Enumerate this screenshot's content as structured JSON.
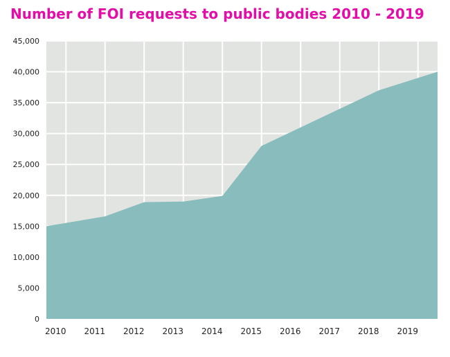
{
  "chart_data": {
    "type": "area",
    "title": "Number of FOI requests to public bodies 2010 - 2019",
    "xlabel": "",
    "ylabel": "",
    "categories": [
      "2010",
      "2011",
      "2012",
      "2013",
      "2014",
      "2015",
      "2016",
      "2017",
      "2018",
      "2019"
    ],
    "series": [
      {
        "values": [
          15000,
          16600,
          18900,
          19000,
          19900,
          28000,
          31000,
          34000,
          37000,
          40000
        ]
      }
    ],
    "ylim": [
      0,
      45000
    ],
    "yticks": [
      "0",
      "5,000",
      "10,000",
      "15,000",
      "20,000",
      "25,000",
      "30,000",
      "35,000",
      "40,000",
      "45,000"
    ],
    "grid": true,
    "legend": "none",
    "colors": {
      "title": "#e20ea8",
      "area": "#88bcbd",
      "plot_background": "#e2e4e1",
      "grid": "#ffffff"
    }
  }
}
